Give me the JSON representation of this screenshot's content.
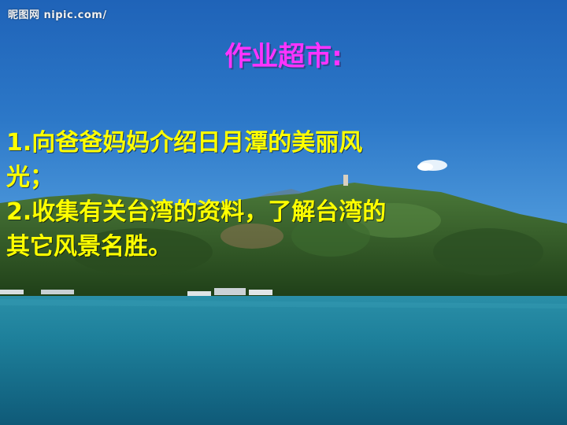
{
  "watermark": "昵图网 nipic.com/",
  "title": "作业超市:",
  "lines": [
    "1.向爸爸妈妈介绍日月潭的美丽风",
    "光；",
    "2.收集有关台湾的资料，了解台湾的",
    "其它风景名胜。"
  ],
  "colors": {
    "title": "#ff33ff",
    "body_text": "#ffff00",
    "sky": "#2c78c8",
    "lake": "#1d7f9a",
    "forest": "#2f5a22"
  }
}
